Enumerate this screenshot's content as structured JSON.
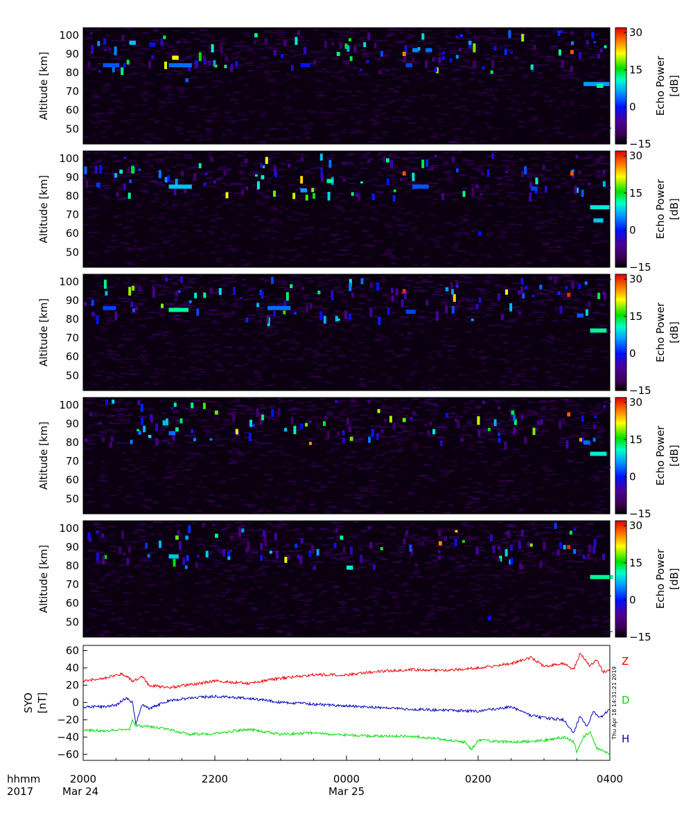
{
  "chart_data": [
    {
      "type": "heatmap",
      "panel": 1,
      "ylabel": "Altitude [km]",
      "ylim": [
        42,
        104
      ],
      "yticks": [
        "50",
        "60",
        "70",
        "80",
        "90",
        "100"
      ],
      "colorbar": {
        "label_line1": "Echo Power",
        "label_line2": "[dB]",
        "range": [
          -15,
          32
        ],
        "ticks": [
          "−15",
          "0",
          "15",
          "30"
        ]
      },
      "features": [
        {
          "x": 20.3,
          "alt": 84,
          "dx": 0.25,
          "v": 3
        },
        {
          "x": 20.7,
          "alt": 96,
          "dx": 0.1,
          "v": 8
        },
        {
          "x": 21.0,
          "alt": 95,
          "dx": 0.1,
          "v": 0
        },
        {
          "x": 21.3,
          "alt": 84,
          "dx": 0.35,
          "v": 4
        },
        {
          "x": 21.35,
          "alt": 88,
          "dx": 0.1,
          "v": 22
        },
        {
          "x": 21.55,
          "alt": 76,
          "dx": 0.05,
          "v": 3
        },
        {
          "x": 22.6,
          "alt": 100,
          "dx": 0.05,
          "v": 12
        },
        {
          "x": 23.3,
          "alt": 84,
          "dx": 0.15,
          "v": 0
        },
        {
          "x": 23.85,
          "alt": 90,
          "dx": 0.05,
          "v": 12
        },
        {
          "x": 24.85,
          "alt": 90,
          "dx": 0.05,
          "v": 26
        },
        {
          "x": 24.9,
          "alt": 84,
          "dx": 0.1,
          "v": 2
        },
        {
          "x": 25.0,
          "alt": 92,
          "dx": 0.1,
          "v": 5
        },
        {
          "x": 25.2,
          "alt": 92,
          "dx": 0.1,
          "v": 4
        },
        {
          "x": 25.85,
          "alt": 96,
          "dx": 0.05,
          "v": 6
        },
        {
          "x": 27.4,
          "alt": 91,
          "dx": 0.05,
          "v": 28
        },
        {
          "x": 27.6,
          "alt": 74,
          "dx": 0.4,
          "v": 6
        },
        {
          "x": 27.8,
          "alt": 73,
          "dx": 0.1,
          "v": 12
        }
      ]
    },
    {
      "type": "heatmap",
      "panel": 2,
      "ylabel": "Altitude [km]",
      "ylim": [
        42,
        104
      ],
      "yticks": [
        "50",
        "60",
        "70",
        "80",
        "90",
        "100"
      ],
      "colorbar": {
        "label_line1": "Echo Power",
        "label_line2": "[dB]",
        "range": [
          -15,
          32
        ],
        "ticks": [
          "−15",
          "0",
          "15",
          "30"
        ]
      },
      "features": [
        {
          "x": 20.2,
          "alt": 86,
          "dx": 0.05,
          "v": 2
        },
        {
          "x": 20.55,
          "alt": 93,
          "dx": 0.05,
          "v": 10
        },
        {
          "x": 21.3,
          "alt": 85,
          "dx": 0.35,
          "v": 8
        },
        {
          "x": 22.7,
          "alt": 90,
          "dx": 0.05,
          "v": 10
        },
        {
          "x": 23.3,
          "alt": 83,
          "dx": 0.1,
          "v": 6
        },
        {
          "x": 23.7,
          "alt": 88,
          "dx": 0.1,
          "v": 12
        },
        {
          "x": 24.6,
          "alt": 99,
          "dx": 0.05,
          "v": 12
        },
        {
          "x": 24.85,
          "alt": 92,
          "dx": 0.05,
          "v": 28
        },
        {
          "x": 25.0,
          "alt": 85,
          "dx": 0.25,
          "v": 3
        },
        {
          "x": 26.0,
          "alt": 60,
          "dx": 0.05,
          "v": 0
        },
        {
          "x": 26.8,
          "alt": 84,
          "dx": 0.1,
          "v": 2
        },
        {
          "x": 27.4,
          "alt": 92,
          "dx": 0.05,
          "v": 28
        },
        {
          "x": 27.7,
          "alt": 74,
          "dx": 0.3,
          "v": 10
        },
        {
          "x": 27.75,
          "alt": 67,
          "dx": 0.15,
          "v": 8
        }
      ]
    },
    {
      "type": "heatmap",
      "panel": 3,
      "ylabel": "Altitude [km]",
      "ylim": [
        42,
        104
      ],
      "yticks": [
        "50",
        "60",
        "70",
        "80",
        "90",
        "100"
      ],
      "colorbar": {
        "label_line1": "Echo Power",
        "label_line2": "[dB]",
        "range": [
          -15,
          32
        ],
        "ticks": [
          "−15",
          "0",
          "15",
          "30"
        ]
      },
      "features": [
        {
          "x": 20.3,
          "alt": 86,
          "dx": 0.2,
          "v": 2
        },
        {
          "x": 21.3,
          "alt": 85,
          "dx": 0.3,
          "v": 12
        },
        {
          "x": 22.8,
          "alt": 86,
          "dx": 0.35,
          "v": 4
        },
        {
          "x": 24.85,
          "alt": 95,
          "dx": 0.05,
          "v": 30
        },
        {
          "x": 24.9,
          "alt": 84,
          "dx": 0.15,
          "v": 2
        },
        {
          "x": 25.5,
          "alt": 96,
          "dx": 0.05,
          "v": 6
        },
        {
          "x": 27.35,
          "alt": 93,
          "dx": 0.05,
          "v": 30
        },
        {
          "x": 27.7,
          "alt": 74,
          "dx": 0.25,
          "v": 12
        },
        {
          "x": 27.5,
          "alt": 82,
          "dx": 0.1,
          "v": 3
        }
      ]
    },
    {
      "type": "heatmap",
      "panel": 4,
      "ylabel": "Altitude [km]",
      "ylim": [
        42,
        104
      ],
      "yticks": [
        "50",
        "60",
        "70",
        "80",
        "90",
        "100"
      ],
      "colorbar": {
        "label_line1": "Echo Power",
        "label_line2": "[dB]",
        "range": [
          -15,
          32
        ],
        "ticks": [
          "−15",
          "0",
          "15",
          "30"
        ]
      },
      "features": [
        {
          "x": 21.3,
          "alt": 85,
          "dx": 0.1,
          "v": 4
        },
        {
          "x": 21.4,
          "alt": 87,
          "dx": 0.05,
          "v": 12
        },
        {
          "x": 22.0,
          "alt": 96,
          "dx": 0.05,
          "v": 18
        },
        {
          "x": 24.05,
          "alt": 82,
          "dx": 0.05,
          "v": 18
        },
        {
          "x": 24.85,
          "alt": 92,
          "dx": 0.05,
          "v": 18
        },
        {
          "x": 26.5,
          "alt": 96,
          "dx": 0.05,
          "v": 14
        },
        {
          "x": 27.35,
          "alt": 95,
          "dx": 0.05,
          "v": 28
        },
        {
          "x": 27.7,
          "alt": 74,
          "dx": 0.25,
          "v": 10
        },
        {
          "x": 27.6,
          "alt": 80,
          "dx": 0.1,
          "v": 4
        }
      ]
    },
    {
      "type": "heatmap",
      "panel": 5,
      "ylabel": "Altitude [km]",
      "ylim": [
        42,
        104
      ],
      "yticks": [
        "50",
        "60",
        "70",
        "80",
        "90",
        "100"
      ],
      "colorbar": {
        "label_line1": "Echo Power",
        "label_line2": "[dB]",
        "range": [
          -15,
          32
        ],
        "ticks": [
          "−15",
          "0",
          "15",
          "30"
        ]
      },
      "features": [
        {
          "x": 21.3,
          "alt": 85,
          "dx": 0.15,
          "v": 8
        },
        {
          "x": 21.4,
          "alt": 95,
          "dx": 0.05,
          "v": 18
        },
        {
          "x": 21.55,
          "alt": 95,
          "dx": 0.05,
          "v": 6
        },
        {
          "x": 22.0,
          "alt": 96,
          "dx": 0.05,
          "v": 12
        },
        {
          "x": 23.9,
          "alt": 95,
          "dx": 0.05,
          "v": 12
        },
        {
          "x": 24.0,
          "alt": 79,
          "dx": 0.1,
          "v": 10
        },
        {
          "x": 25.4,
          "alt": 92,
          "dx": 0.05,
          "v": 26
        },
        {
          "x": 26.15,
          "alt": 52,
          "dx": 0.05,
          "v": 0
        },
        {
          "x": 27.35,
          "alt": 90,
          "dx": 0.05,
          "v": 30
        },
        {
          "x": 27.7,
          "alt": 74,
          "dx": 0.35,
          "v": 12
        }
      ]
    },
    {
      "type": "line",
      "panel": 6,
      "ylabel_line1": "SYO",
      "ylabel_line2": "[nT]",
      "ylim": [
        -67,
        66
      ],
      "yticks": [
        "60",
        "40",
        "20",
        "0",
        "−20",
        "−40",
        "−60"
      ],
      "xlim": [
        20.0,
        28.0
      ],
      "xticks": [
        "2000",
        "2200",
        "0000",
        "0200",
        "0400"
      ],
      "date_labels": [
        "Mar 24",
        "Mar 25"
      ],
      "timestamp": "Thu Apr 18 14:31:21 2019",
      "series": [
        {
          "name": "Z",
          "color": "#ee0000",
          "x": [
            20.0,
            20.3,
            20.6,
            20.75,
            20.9,
            21.0,
            21.3,
            21.6,
            22.0,
            22.5,
            23.0,
            23.5,
            24.0,
            24.5,
            25.0,
            25.5,
            26.0,
            26.5,
            26.8,
            27.0,
            27.3,
            27.45,
            27.55,
            27.7,
            27.8,
            27.9,
            28.0
          ],
          "y": [
            25,
            28,
            33,
            25,
            30,
            20,
            17,
            20,
            25,
            22,
            28,
            32,
            32,
            36,
            38,
            37,
            40,
            45,
            52,
            42,
            45,
            38,
            57,
            42,
            50,
            35,
            38
          ]
        },
        {
          "name": "D",
          "color": "#00dd00",
          "x": [
            20.0,
            20.3,
            20.6,
            20.7,
            20.75,
            20.8,
            21.0,
            21.3,
            21.6,
            22.0,
            22.5,
            23.0,
            23.5,
            24.0,
            24.5,
            25.0,
            25.5,
            25.8,
            25.9,
            26.0,
            26.5,
            27.0,
            27.3,
            27.45,
            27.5,
            27.6,
            27.7,
            27.8,
            27.9,
            28.0
          ],
          "y": [
            -32,
            -33,
            -31,
            -33,
            -20,
            -27,
            -28,
            -31,
            -37,
            -36,
            -31,
            -37,
            -35,
            -38,
            -39,
            -39,
            -43,
            -46,
            -54,
            -44,
            -46,
            -44,
            -40,
            -45,
            -58,
            -40,
            -34,
            -53,
            -55,
            -60
          ]
        },
        {
          "name": "H",
          "color": "#0000bb",
          "x": [
            20.0,
            20.3,
            20.5,
            20.65,
            20.75,
            20.8,
            20.9,
            21.0,
            21.3,
            21.6,
            22.0,
            22.5,
            23.0,
            23.5,
            24.0,
            24.5,
            25.0,
            25.5,
            26.0,
            26.5,
            26.8,
            27.0,
            27.3,
            27.45,
            27.55,
            27.65,
            27.75,
            27.85,
            28.0
          ],
          "y": [
            -5,
            -5,
            -3,
            5,
            0,
            -25,
            -2,
            -7,
            2,
            5,
            7,
            5,
            0,
            -2,
            -4,
            -6,
            -8,
            -9,
            -10,
            -5,
            -15,
            -18,
            -20,
            -36,
            -15,
            -28,
            -10,
            -18,
            -8
          ]
        }
      ]
    }
  ],
  "xaxis": {
    "row_label_line1": "hhmm",
    "row_label_line2": "2017",
    "ticks": [
      "2000",
      "2200",
      "0000",
      "0200",
      "0400"
    ],
    "date_labels": [
      "Mar 24",
      "Mar 25"
    ]
  },
  "legend_labels": {
    "z": "Z",
    "d": "D",
    "h": "H"
  },
  "timestamp": "Thu Apr 18 14:31:21 2019"
}
